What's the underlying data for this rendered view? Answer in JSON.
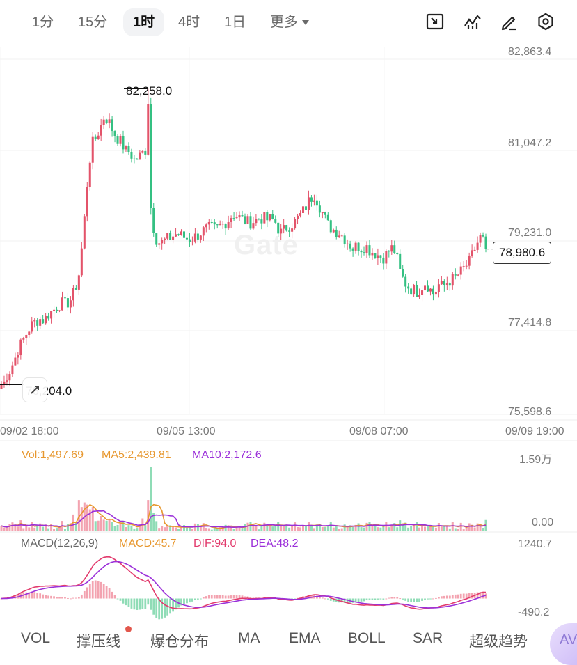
{
  "timeframes": [
    "1分",
    "15分",
    "1时",
    "4时",
    "1日"
  ],
  "active_timeframe": "1时",
  "more_label": "更多",
  "toolbar_icons": [
    "fullscreen-icon",
    "indicator-icon",
    "draw-icon",
    "settings-icon"
  ],
  "watermark": "Gate",
  "price_axis": [
    "82,863.4",
    "81,047.2",
    "79,231.0",
    "77,414.8",
    "75,598.6"
  ],
  "time_axis": [
    "09/02 18:00",
    "09/05 13:00",
    "09/08 07:00",
    "09/09 19:00"
  ],
  "current_price": "78,980.6",
  "high_label": "82,258.0",
  "low_label": "76,204.0",
  "volume_legend": {
    "vol": "Vol:1,497.69",
    "ma5": "MA5:2,439.81",
    "ma10": "MA10:2,172.6"
  },
  "volume_axis": {
    "top": "1.59万",
    "bottom": "0.00"
  },
  "macd_legend": {
    "name": "MACD(12,26,9)",
    "macd": "MACD:45.7",
    "dif": "DIF:94.0",
    "dea": "DEA:48.2"
  },
  "macd_axis": {
    "top": "1240.7",
    "bottom": "-490.2"
  },
  "bottom_tabs": [
    "VOL",
    "撑压线",
    "爆仓分布",
    "MA",
    "EMA",
    "BOLL",
    "SAR",
    "超级趋势"
  ],
  "fab_label": "AV",
  "colors": {
    "up": "#e3536a",
    "down": "#34c082",
    "ma5": "#e7972e",
    "ma10": "#9b30d9",
    "dif": "#e23b6d",
    "dea": "#9b30d9"
  },
  "chart_data": {
    "type": "candlestick",
    "y_range": [
      75598.6,
      82863.4
    ],
    "y_ticks": [
      82863.4,
      81047.2,
      79231.0,
      77414.8,
      75598.6
    ],
    "x_ticks": [
      "09/02 18:00",
      "09/05 13:00",
      "09/08 07:00",
      "09/09 19:00"
    ],
    "high": 82258.0,
    "low": 76204.0,
    "last": 78980.6,
    "price_path": [
      76080,
      76350,
      76500,
      76700,
      76950,
      77100,
      77280,
      77420,
      77500,
      77550,
      77520,
      77650,
      77720,
      77800,
      77880,
      77850,
      77920,
      78100,
      78400,
      79200,
      80300,
      81100,
      81250,
      81450,
      81700,
      81600,
      81400,
      81250,
      81150,
      81000,
      80950,
      80800,
      80850,
      80950,
      81050,
      79650,
      79200,
      79100,
      79150,
      79200,
      79250,
      79300,
      79250,
      79200,
      79180,
      79220,
      79280,
      79350,
      79400,
      79420,
      79380,
      79450,
      79500,
      79580,
      79700,
      79650,
      79600,
      79550,
      79520,
      79560,
      79600,
      79620,
      79580,
      79600,
      79520,
      79300,
      79380,
      79450,
      79500,
      79600,
      79700,
      79850,
      80000,
      80100,
      79900,
      79700,
      79500,
      79400,
      79350,
      79300,
      79200,
      79100,
      79000,
      79050,
      79000,
      79050,
      78950,
      78900,
      78850,
      78800,
      78900,
      79000,
      78900,
      78500,
      78300,
      78200,
      78150,
      78100,
      78200,
      78300,
      78150,
      78050,
      78250,
      78200,
      78300,
      78350,
      78400,
      78500,
      78600,
      78700,
      78900,
      79100,
      79250,
      79000
    ],
    "volume_axis": [
      "0.00",
      "1.59万"
    ],
    "macd_axis": [
      "-490.2",
      "1240.7"
    ]
  }
}
